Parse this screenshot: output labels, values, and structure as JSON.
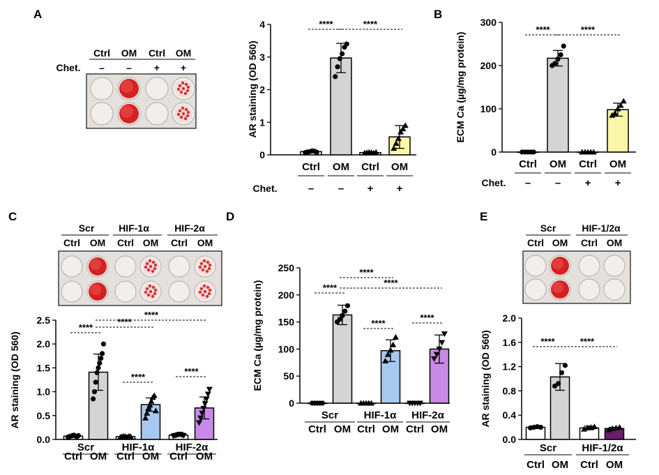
{
  "panels": {
    "A": "A",
    "B": "B",
    "C": "C",
    "D": "D",
    "E": "E"
  },
  "colors": {
    "gray": "#d4d4d4",
    "yellow": "#fbf7a8",
    "blue": "#a7c9ef",
    "purple": "#c88ae6",
    "dark_purple": "#6b1d6b",
    "stain": "#d42222"
  },
  "plates": {
    "A": {
      "headers": [
        "Ctrl",
        "OM",
        "Ctrl",
        "OM"
      ],
      "chet_label": "Chet.",
      "chet_signs": [
        "–",
        "–",
        "+",
        "+"
      ]
    },
    "C": {
      "groups": [
        "Scr",
        "HIF-1α",
        "HIF-2α"
      ],
      "headers": [
        "Ctrl",
        "OM",
        "Ctrl",
        "OM",
        "Ctrl",
        "OM"
      ]
    },
    "E": {
      "groups": [
        "Scr",
        "HIF-1/2α"
      ],
      "headers": [
        "Ctrl",
        "OM",
        "Ctrl",
        "OM"
      ]
    }
  },
  "chart_data": [
    {
      "id": "A",
      "type": "bar",
      "ylabel": "AR staining (OD 560)",
      "ylim": [
        0,
        4
      ],
      "ticks": [
        "0",
        "1",
        "2",
        "3",
        "4"
      ],
      "categories": [
        "Ctrl",
        "OM",
        "Ctrl",
        "OM"
      ],
      "values": [
        0.1,
        2.97,
        0.07,
        0.55
      ],
      "errors": [
        0.03,
        0.45,
        0.02,
        0.35
      ],
      "bar_colors": [
        "#ffffff",
        "#d4d4d4",
        "#ffffff",
        "#fbf7a8"
      ],
      "marker": [
        "circle",
        "circle",
        "triangle",
        "triangle"
      ],
      "points": [
        [
          0.07,
          0.09,
          0.1,
          0.12,
          0.11,
          0.08
        ],
        [
          2.4,
          2.7,
          2.95,
          3.1,
          3.3,
          3.4
        ],
        [
          0.06,
          0.07,
          0.08,
          0.07,
          0.06,
          0.08
        ],
        [
          0.2,
          0.35,
          0.5,
          0.7,
          0.8,
          0.9
        ]
      ],
      "group_label": "Chet.",
      "group_signs": [
        "–",
        "–",
        "+",
        "+"
      ],
      "significance": [
        {
          "from": 0,
          "to": 1,
          "label": "****"
        },
        {
          "from": 1,
          "to": 3,
          "label": "****"
        }
      ]
    },
    {
      "id": "B",
      "type": "bar",
      "ylabel": "ECM Ca (µg/mg protein)",
      "ylim": [
        0,
        300
      ],
      "ticks": [
        "0",
        "100",
        "200",
        "300"
      ],
      "categories": [
        "Ctrl",
        "OM",
        "Ctrl",
        "OM"
      ],
      "values": [
        0,
        217,
        0,
        98
      ],
      "errors": [
        0,
        18,
        0,
        15
      ],
      "bar_colors": [
        "#ffffff",
        "#d4d4d4",
        "#ffffff",
        "#fbf7a8"
      ],
      "marker": [
        "circle",
        "circle",
        "triangle",
        "triangle"
      ],
      "points": [
        [
          0,
          0,
          0,
          0,
          0
        ],
        [
          200,
          205,
          215,
          225,
          245
        ],
        [
          0,
          0,
          0,
          0,
          0
        ],
        [
          85,
          90,
          100,
          108,
          118
        ]
      ],
      "group_label": "Chet.",
      "group_signs": [
        "–",
        "–",
        "+",
        "+"
      ],
      "significance": [
        {
          "from": 0,
          "to": 1,
          "label": "****"
        },
        {
          "from": 1,
          "to": 3,
          "label": "****"
        }
      ]
    },
    {
      "id": "C",
      "type": "bar",
      "ylabel": "AR staining (OD 560)",
      "ylim": [
        0,
        2.5
      ],
      "ticks": [
        "0.0",
        "0.5",
        "1.0",
        "1.5",
        "2.0",
        "2.5"
      ],
      "categories": [
        "Ctrl",
        "OM",
        "Ctrl",
        "OM",
        "Ctrl",
        "OM"
      ],
      "values": [
        0.07,
        1.41,
        0.06,
        0.73,
        0.09,
        0.66
      ],
      "errors": [
        0.02,
        0.38,
        0.01,
        0.14,
        0.02,
        0.23
      ],
      "bar_colors": [
        "#ffffff",
        "#d4d4d4",
        "#ffffff",
        "#a7c9ef",
        "#ffffff",
        "#c88ae6"
      ],
      "marker": [
        "circle",
        "circle",
        "triangle",
        "triangle",
        "invtriangle",
        "invtriangle"
      ],
      "points": [
        [
          0.05,
          0.06,
          0.07,
          0.08,
          0.09,
          0.07,
          0.06,
          0.08
        ],
        [
          0.85,
          1.0,
          1.2,
          1.4,
          1.5,
          1.6,
          1.7,
          1.8,
          2.0
        ],
        [
          0.05,
          0.06,
          0.07,
          0.06,
          0.05,
          0.07,
          0.06
        ],
        [
          0.45,
          0.55,
          0.65,
          0.72,
          0.8,
          0.88,
          0.92,
          0.6
        ],
        [
          0.07,
          0.08,
          0.09,
          0.1,
          0.11,
          0.09,
          0.08
        ],
        [
          0.35,
          0.45,
          0.55,
          0.65,
          0.75,
          0.85,
          0.95,
          1.05
        ]
      ],
      "groups": [
        "Scr",
        "HIF-1α",
        "HIF-2α"
      ],
      "significance": [
        {
          "from": 0,
          "to": 1,
          "label": "****"
        },
        {
          "from": 1,
          "to": 3,
          "label": "****"
        },
        {
          "from": 1,
          "to": 5,
          "label": "****"
        },
        {
          "from": 2,
          "to": 3,
          "label": "****"
        },
        {
          "from": 4,
          "to": 5,
          "label": "****"
        }
      ]
    },
    {
      "id": "D",
      "type": "bar",
      "ylabel": "ECM Ca (µg/mg protein)",
      "ylim": [
        0,
        250
      ],
      "ticks": [
        "0",
        "50",
        "100",
        "150",
        "200",
        "250"
      ],
      "categories": [
        "Ctrl",
        "OM",
        "Ctrl",
        "OM",
        "Ctrl",
        "OM"
      ],
      "values": [
        0,
        163,
        0,
        97,
        0,
        100
      ],
      "errors": [
        0,
        18,
        0,
        20,
        0,
        26
      ],
      "bar_colors": [
        "#ffffff",
        "#d4d4d4",
        "#ffffff",
        "#a7c9ef",
        "#ffffff",
        "#c88ae6"
      ],
      "marker": [
        "circle",
        "circle",
        "triangle",
        "triangle",
        "invtriangle",
        "invtriangle"
      ],
      "points": [
        [
          0,
          0,
          0,
          0,
          0
        ],
        [
          150,
          155,
          162,
          170,
          180
        ],
        [
          0,
          0,
          0,
          0,
          0
        ],
        [
          78,
          90,
          98,
          108,
          122
        ],
        [
          0,
          0,
          0,
          0,
          0
        ],
        [
          82,
          90,
          100,
          112,
          128
        ]
      ],
      "groups": [
        "Scr",
        "HIF-1α",
        "HIF-2α"
      ],
      "significance": [
        {
          "from": 0,
          "to": 1,
          "label": "****"
        },
        {
          "from": 1,
          "to": 3,
          "label": "****"
        },
        {
          "from": 1,
          "to": 5,
          "label": "****"
        },
        {
          "from": 2,
          "to": 3,
          "label": "****"
        },
        {
          "from": 4,
          "to": 5,
          "label": "****"
        }
      ]
    },
    {
      "id": "E",
      "type": "bar",
      "ylabel": "AR staining (OD 560)",
      "ylim": [
        0,
        2.0
      ],
      "ticks": [
        "0.0",
        "0.4",
        "0.8",
        "1.2",
        "1.6",
        "2.0"
      ],
      "categories": [
        "Ctrl",
        "OM",
        "Ctrl",
        "OM"
      ],
      "values": [
        0.2,
        1.03,
        0.19,
        0.18
      ],
      "errors": [
        0.02,
        0.22,
        0.03,
        0.02
      ],
      "bar_colors": [
        "#ffffff",
        "#d4d4d4",
        "#ffffff",
        "#6b1d6b"
      ],
      "marker": [
        "circle",
        "circle",
        "triangle",
        "triangle"
      ],
      "points": [
        [
          0.19,
          0.2,
          0.21,
          0.2
        ],
        [
          0.88,
          0.92,
          1.1,
          1.22
        ],
        [
          0.17,
          0.19,
          0.2,
          0.21
        ],
        [
          0.16,
          0.18,
          0.19,
          0.2
        ]
      ],
      "groups": [
        "Scr",
        "HIF-1/2α"
      ],
      "significance": [
        {
          "from": 0,
          "to": 1,
          "label": "****"
        },
        {
          "from": 1,
          "to": 3,
          "label": "****"
        }
      ]
    }
  ]
}
